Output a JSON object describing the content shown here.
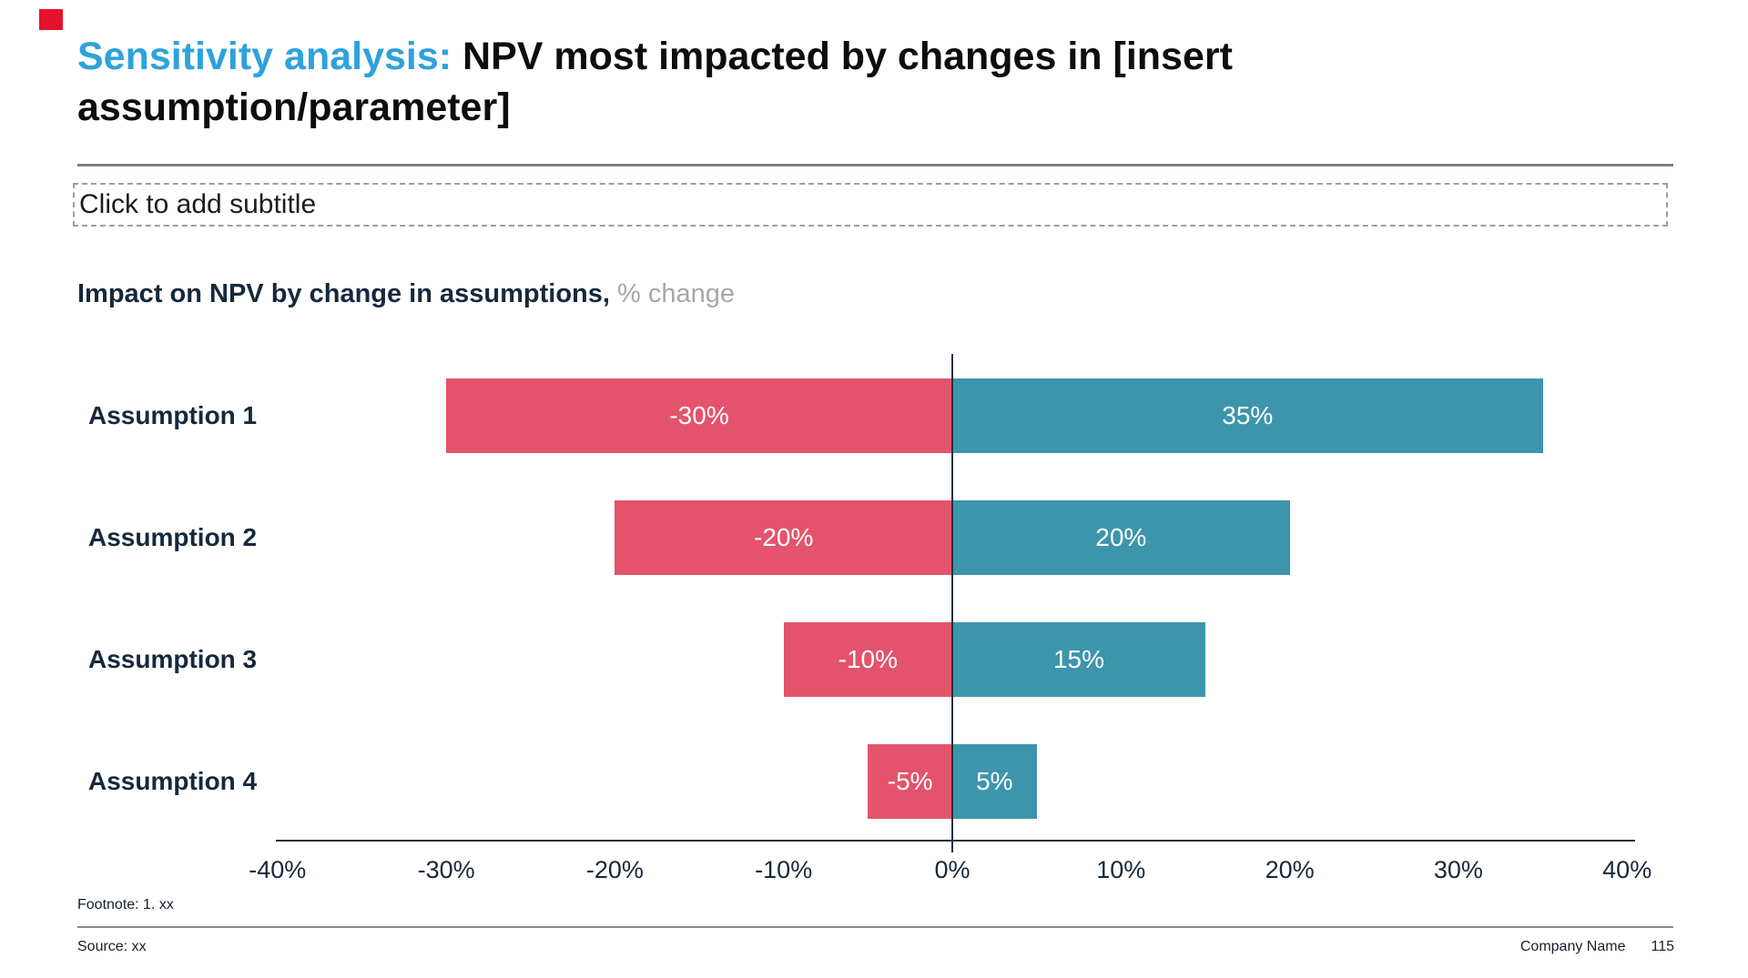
{
  "slide": {
    "accent_color": "#e8112d",
    "title": {
      "highlight": "Sensitivity analysis:",
      "rest": " NPV most impacted by changes in [insert assumption/parameter]"
    },
    "subtitle_placeholder": "Click to add subtitle",
    "footnote": "Footnote: 1. xx",
    "source": "Source: xx",
    "company_name": "Company Name",
    "page_number": "115"
  },
  "chart_data": {
    "type": "bar",
    "variant": "tornado-horizontal",
    "title": "Impact on NPV by change in assumptions,",
    "unit_label": " % change",
    "categories": [
      "Assumption 1",
      "Assumption 2",
      "Assumption 3",
      "Assumption 4"
    ],
    "series": [
      {
        "name": "downside",
        "color": "#e4536b",
        "values": [
          -30,
          -20,
          -10,
          -5
        ],
        "labels": [
          "-30%",
          "-20%",
          "-10%",
          "-5%"
        ]
      },
      {
        "name": "upside",
        "color": "#3d95ac",
        "values": [
          35,
          20,
          15,
          5
        ],
        "labels": [
          "35%",
          "20%",
          "15%",
          "5%"
        ]
      }
    ],
    "x_axis": {
      "min": -40,
      "max": 40,
      "step": 10,
      "ticks": [
        "-40%",
        "-30%",
        "-20%",
        "-10%",
        "0%",
        "10%",
        "20%",
        "30%",
        "40%"
      ]
    },
    "value_label_color": "#ffffff",
    "legend": "none",
    "grid": "none"
  }
}
